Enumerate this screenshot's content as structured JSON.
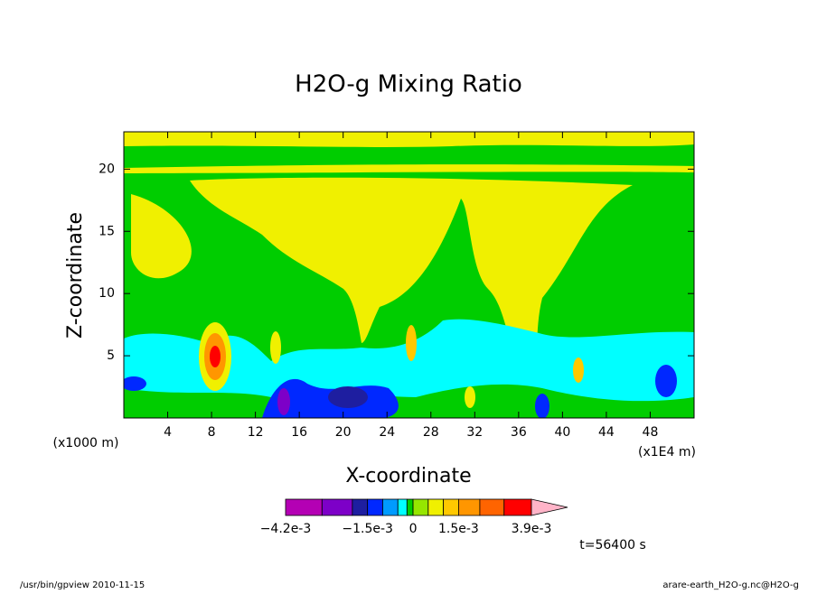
{
  "chart_data": {
    "type": "contour",
    "title": "H2O-g Mixing Ratio",
    "x_label": "X-coordinate",
    "y_label": "Z-coordinate",
    "x_unit_left": "(x1000 m)",
    "x_unit_right": "(x1E4 m)",
    "xlim": [
      0,
      52
    ],
    "xticks": [
      4,
      8,
      12,
      16,
      20,
      24,
      28,
      32,
      36,
      40,
      44,
      48
    ],
    "ylim": [
      0,
      23
    ],
    "yticks": [
      5,
      10,
      15,
      20
    ],
    "colorbar": {
      "levels": [
        -0.0042,
        -0.003,
        -0.002,
        -0.0015,
        -0.001,
        -0.0005,
        -0.0002,
        0,
        0.0005,
        0.001,
        0.0015,
        0.0022,
        0.003,
        0.0039
      ],
      "colors": [
        "#b400b4",
        "#7d00c8",
        "#1e1ea0",
        "#0028ff",
        "#009bff",
        "#00ffff",
        "#00cd00",
        "#96e600",
        "#f0f000",
        "#ffc800",
        "#ff9600",
        "#ff6400",
        "#ff0000",
        "#ff7878"
      ],
      "over_color": "#ffb4c8",
      "ticks": [
        {
          "value": -0.0042,
          "label": "−4.2e-3"
        },
        {
          "value": -0.0015,
          "label": "−1.5e-3"
        },
        0,
        {
          "value": 0.0015,
          "label": "1.5e-3"
        },
        {
          "value": 0.0039,
          "label": "3.9e-3"
        }
      ]
    },
    "time_label": "t=56400 s",
    "footer_left": "/usr/bin/gpview   2010-11-15",
    "footer_right": "arare-earth_H2O-g.nc@H2O-g"
  }
}
